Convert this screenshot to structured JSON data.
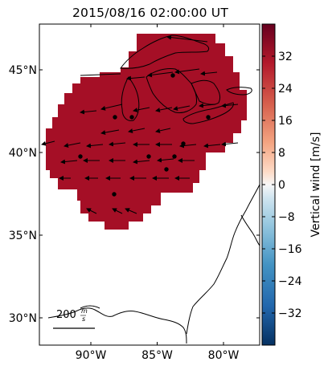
{
  "title": "2015/08/16 02:00:00 UT",
  "map": {
    "lat_ticks": [
      {
        "label": "45°N",
        "value": 45
      },
      {
        "label": "40°N",
        "value": 40
      },
      {
        "label": "35°N",
        "value": 35
      },
      {
        "label": "30°N",
        "value": 30
      }
    ],
    "lon_ticks": [
      {
        "label": "90°W",
        "value": -90
      },
      {
        "label": "85°W",
        "value": -85
      },
      {
        "label": "80°W",
        "value": -80
      }
    ],
    "extent": {
      "lon_min": -94,
      "lon_max": -77.5,
      "lat_min": 28.5,
      "lat_max": 47.5
    },
    "field_color": "#a50f26",
    "station_color": "#000000",
    "scale_label": "200 m/s",
    "scale_label_main": "200",
    "scale_label_unit_num": "m",
    "scale_label_unit_den": "s"
  },
  "colorbar": {
    "label": "Vertical wind [m/s]",
    "ticks": [
      "32",
      "24",
      "16",
      "8",
      "0",
      "−8",
      "−16",
      "−24",
      "−32"
    ],
    "tick_values": [
      32,
      24,
      16,
      8,
      0,
      -8,
      -16,
      -24,
      -32
    ],
    "range": [
      -40,
      40
    ],
    "colormap": "RdBu_r",
    "colors": {
      "low": "#053061",
      "mid": "#f7f7f7",
      "high": "#67001f"
    }
  }
}
